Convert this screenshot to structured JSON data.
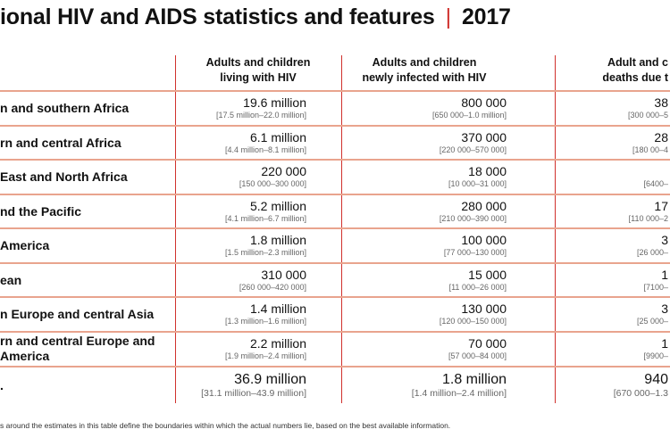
{
  "title": {
    "text": "ional HIV and AIDS statistics and features",
    "year": "2017"
  },
  "headers": [
    [
      "Adults and children",
      "living with HIV"
    ],
    [
      "Adults and children",
      "newly infected with HIV"
    ],
    [
      "Adult and c",
      "deaths due t"
    ]
  ],
  "rows": [
    {
      "region": [
        "n and southern Africa"
      ],
      "c1": [
        "19.6 million",
        "[17.5 million–22.0 million]"
      ],
      "c2": [
        "800 000",
        "[650 000–1.0 million]"
      ],
      "c3": [
        "38",
        "[300 000–5"
      ]
    },
    {
      "region": [
        "rn and central Africa"
      ],
      "c1": [
        "6.1 million",
        "[4.4 million–8.1 million]"
      ],
      "c2": [
        "370 000",
        "[220 000–570 000]"
      ],
      "c3": [
        "28",
        "[180 00–4"
      ]
    },
    {
      "region": [
        " East and North Africa"
      ],
      "c1": [
        "220 000",
        "[150 000–300 000]"
      ],
      "c2": [
        "18 000",
        "[10 000–31 000]"
      ],
      "c3": [
        "",
        "[6400–"
      ]
    },
    {
      "region": [
        "nd the Pacific"
      ],
      "c1": [
        "5.2 million",
        "[4.1 million–6.7 million]"
      ],
      "c2": [
        "280 000",
        "[210 000–390 000]"
      ],
      "c3": [
        "17",
        "[110 000–2"
      ]
    },
    {
      "region": [
        "America"
      ],
      "c1": [
        "1.8 million",
        "[1.5 million–2.3 million]"
      ],
      "c2": [
        "100 000",
        "[77 000–130 000]"
      ],
      "c3": [
        "3",
        "[26 000–"
      ]
    },
    {
      "region": [
        "ean"
      ],
      "c1": [
        "310 000",
        "[260 000–420 000]"
      ],
      "c2": [
        "15 000",
        "[11 000–26 000]"
      ],
      "c3": [
        "1",
        "[7100–"
      ]
    },
    {
      "region": [
        "n Europe and central Asia"
      ],
      "c1": [
        "1.4 million",
        "[1.3 million–1.6 million]"
      ],
      "c2": [
        "130 000",
        "[120 000–150 000]"
      ],
      "c3": [
        "3",
        "[25 000–"
      ]
    },
    {
      "region": [
        "rn and central Europe and",
        "America"
      ],
      "c1": [
        "2.2 million",
        "[1.9 million–2.4 million]"
      ],
      "c2": [
        "70 000",
        "[57 000–84 000]"
      ],
      "c3": [
        "1",
        "[9900–"
      ]
    },
    {
      "region": [
        "."
      ],
      "c1": [
        "36.9 million",
        "[31.1 million–43.9 million]"
      ],
      "c2": [
        "1.8 million",
        "[1.4 million–2.4 million]"
      ],
      "c3": [
        "940",
        "[670 000–1.3"
      ]
    }
  ],
  "footnote": "s around the estimates in this table define the boundaries within which the actual numbers lie, based on the best available information.",
  "colors": {
    "accent": "#d0312d",
    "row_line": "#e9a48e"
  }
}
